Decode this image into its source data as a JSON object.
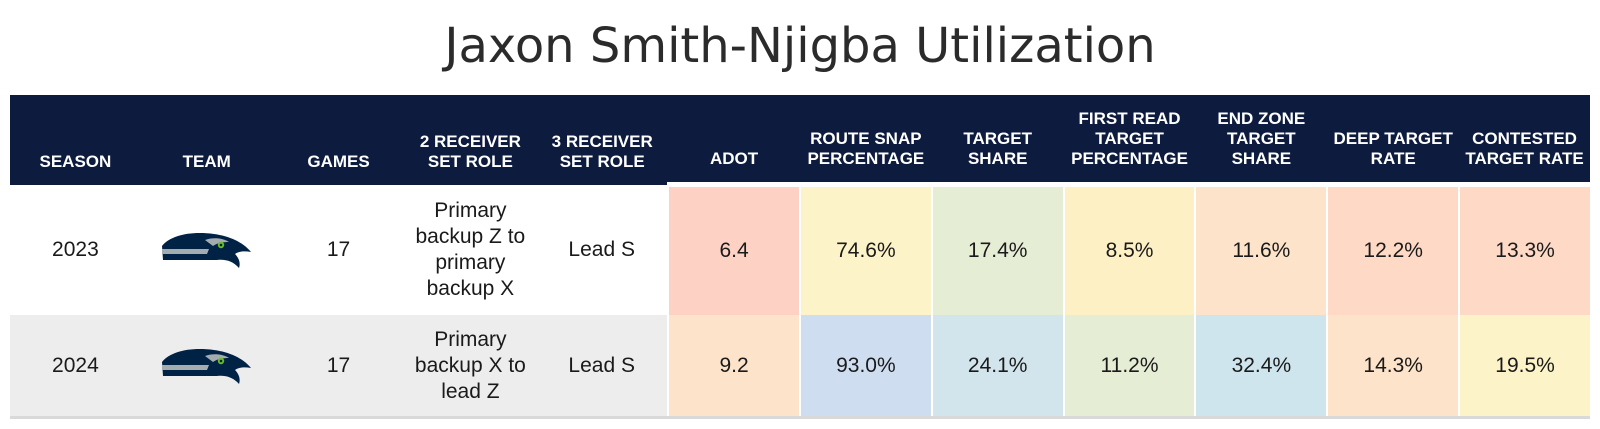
{
  "page": {
    "title": "Jaxon Smith-Njigba Utilization"
  },
  "columns": [
    "SEASON",
    "TEAM",
    "GAMES",
    "2 RECEIVER SET ROLE",
    "3 RECEIVER SET ROLE",
    "ADOT",
    "ROUTE SNAP PERCENTAGE",
    "TARGET SHARE",
    "FIRST READ TARGET PERCENTAGE",
    "END ZONE TARGET SHARE",
    "DEEP TARGET RATE",
    "CONTESTED TARGET RATE"
  ],
  "rows": [
    {
      "season": "2023",
      "team_logo": "seahawks-logo",
      "games": "17",
      "role2": "Primary backup Z to primary backup X",
      "role3": "Lead S",
      "metrics": [
        "6.4",
        "74.6%",
        "17.4%",
        "8.5%",
        "11.6%",
        "12.2%",
        "13.3%"
      ],
      "colors": [
        "#fdd2c5",
        "#fcf3c8",
        "#e6edd5",
        "#fdf0c4",
        "#fde3c9",
        "#fdd9c6",
        "#fdd9c6"
      ]
    },
    {
      "season": "2024",
      "team_logo": "seahawks-logo",
      "games": "17",
      "role2": "Primary backup X to lead Z",
      "role3": "Lead S",
      "metrics": [
        "9.2",
        "93.0%",
        "24.1%",
        "11.2%",
        "32.4%",
        "14.3%",
        "19.5%"
      ],
      "colors": [
        "#fde3c9",
        "#cfddf1",
        "#d3e5ec",
        "#e6edd5",
        "#cee5ee",
        "#fde3c9",
        "#fcf3c8"
      ]
    }
  ],
  "chart_data": {
    "type": "table",
    "title": "Jaxon Smith-Njigba Utilization",
    "columns": [
      "SEASON",
      "TEAM",
      "GAMES",
      "2 RECEIVER SET ROLE",
      "3 RECEIVER SET ROLE",
      "ADOT",
      "ROUTE SNAP PERCENTAGE",
      "TARGET SHARE",
      "FIRST READ TARGET PERCENTAGE",
      "END ZONE TARGET SHARE",
      "DEEP TARGET RATE",
      "CONTESTED TARGET RATE"
    ],
    "rows": [
      [
        "2023",
        "",
        "17",
        "Primary backup Z to primary backup X",
        "Lead S",
        6.4,
        "74.6%",
        "17.4%",
        "8.5%",
        "11.6%",
        "12.2%",
        "13.3%"
      ],
      [
        "2024",
        "",
        "17",
        "Primary backup X to lead Z",
        "Lead S",
        9.2,
        "93.0%",
        "24.1%",
        "11.2%",
        "32.4%",
        "14.3%",
        "19.5%"
      ]
    ]
  },
  "colors": {
    "header_bg": "#0d1b3e",
    "header_text": "#ffffff",
    "logo_navy": "#002244",
    "logo_green": "#69be28",
    "logo_gray": "#a5acaf"
  }
}
